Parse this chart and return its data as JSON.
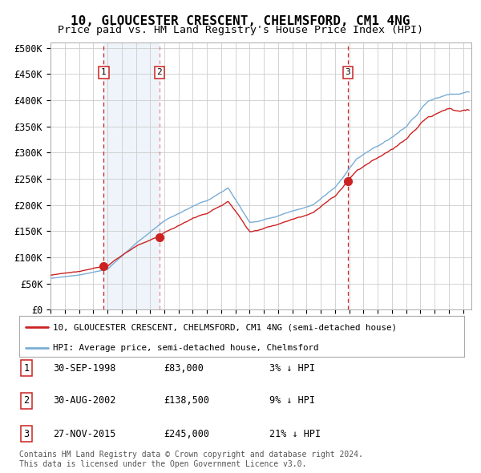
{
  "title": "10, GLOUCESTER CRESCENT, CHELMSFORD, CM1 4NG",
  "subtitle": "Price paid vs. HM Land Registry's House Price Index (HPI)",
  "ylim": [
    0,
    510000
  ],
  "yticks": [
    0,
    50000,
    100000,
    150000,
    200000,
    250000,
    300000,
    350000,
    400000,
    450000,
    500000
  ],
  "ytick_labels": [
    "£0",
    "£50K",
    "£100K",
    "£150K",
    "£200K",
    "£250K",
    "£300K",
    "£350K",
    "£400K",
    "£450K",
    "£500K"
  ],
  "sale1_date": "1998-09-30",
  "sale1_price": 83000,
  "sale2_date": "2002-08-30",
  "sale2_price": 138500,
  "sale3_date": "2015-11-27",
  "sale3_price": 245000,
  "hpi_color": "#7aadd4",
  "price_color": "#cc2222",
  "vline_color": "#cc2222",
  "shade_color": "#ccddef",
  "background_color": "#ffffff",
  "grid_color": "#cccccc",
  "legend_label_price": "10, GLOUCESTER CRESCENT, CHELMSFORD, CM1 4NG (semi-detached house)",
  "legend_label_hpi": "HPI: Average price, semi-detached house, Chelmsford",
  "table_rows": [
    [
      "1",
      "30-SEP-1998",
      "£83,000",
      "3% ↓ HPI"
    ],
    [
      "2",
      "30-AUG-2002",
      "£138,500",
      "9% ↓ HPI"
    ],
    [
      "3",
      "27-NOV-2015",
      "£245,000",
      "21% ↓ HPI"
    ]
  ],
  "footnote": "Contains HM Land Registry data © Crown copyright and database right 2024.\nThis data is licensed under the Open Government Licence v3.0."
}
